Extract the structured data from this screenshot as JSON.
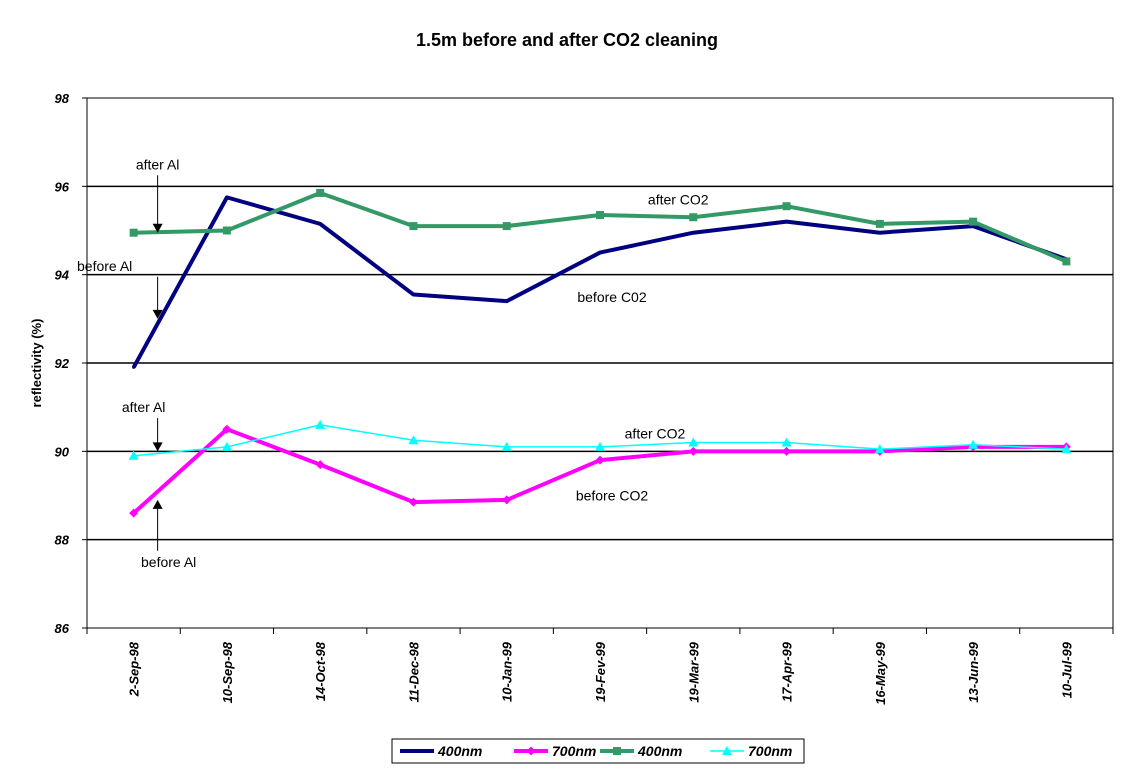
{
  "chart_data": {
    "type": "line",
    "title": "1.5m before and after CO2 cleaning",
    "xlabel": "",
    "ylabel": "reflectivity (%)",
    "ylim": [
      86,
      98
    ],
    "yticks": [
      86,
      88,
      90,
      92,
      94,
      96,
      98
    ],
    "grid": true,
    "legend_position": "bottom",
    "categories": [
      "2-Sep-98",
      "10-Sep-98",
      "14-Oct-98",
      "11-Dec-98",
      "10-Jan-99",
      "19-Fev-99",
      "19-Mar-99",
      "17-Apr-99",
      "16-May-99",
      "13-Jun-99",
      "10-Jul-99"
    ],
    "series": [
      {
        "name": "400nm",
        "color": "#000080",
        "marker": "none",
        "values": [
          91.9,
          95.75,
          95.15,
          93.55,
          93.4,
          94.5,
          94.95,
          95.2,
          94.95,
          95.1,
          94.35
        ]
      },
      {
        "name": "700nm",
        "color": "#ff00ff",
        "marker": "diamond",
        "values": [
          88.6,
          90.5,
          89.7,
          88.85,
          88.9,
          89.8,
          90.0,
          90.0,
          90.0,
          90.1,
          90.1
        ]
      },
      {
        "name": "400nm",
        "color": "#339966",
        "marker": "square",
        "values": [
          94.95,
          95.0,
          95.85,
          95.1,
          95.1,
          95.35,
          95.3,
          95.55,
          95.15,
          95.2,
          94.3
        ]
      },
      {
        "name": "700nm",
        "color": "#00ffff",
        "marker": "triangle",
        "values": [
          89.9,
          90.1,
          90.6,
          90.25,
          90.1,
          90.1,
          90.2,
          90.2,
          90.05,
          90.15,
          90.05
        ]
      }
    ],
    "annotations": [
      {
        "text": "after Al",
        "x": "2-Sep-98",
        "y": 96.5,
        "arrow_to": 94.95
      },
      {
        "text": "before Al",
        "x": "2-Sep-98",
        "y": 94.2,
        "arrow_to": 93.0
      },
      {
        "text": "after CO2",
        "x": "19-Mar-99",
        "y": 95.7
      },
      {
        "text": "before C02",
        "x": "19-Fev-99",
        "y": 93.5
      },
      {
        "text": "after Al",
        "x": "2-Sep-98",
        "y": 91.0,
        "arrow_to": 90.0
      },
      {
        "text": "after CO2",
        "x": "19-Fev-99",
        "y": 90.4
      },
      {
        "text": "before CO2",
        "x": "19-Fev-99",
        "y": 89.0
      },
      {
        "text": "before Al",
        "x": "2-Sep-98",
        "y": 87.5,
        "arrow_to": 88.9
      }
    ]
  }
}
